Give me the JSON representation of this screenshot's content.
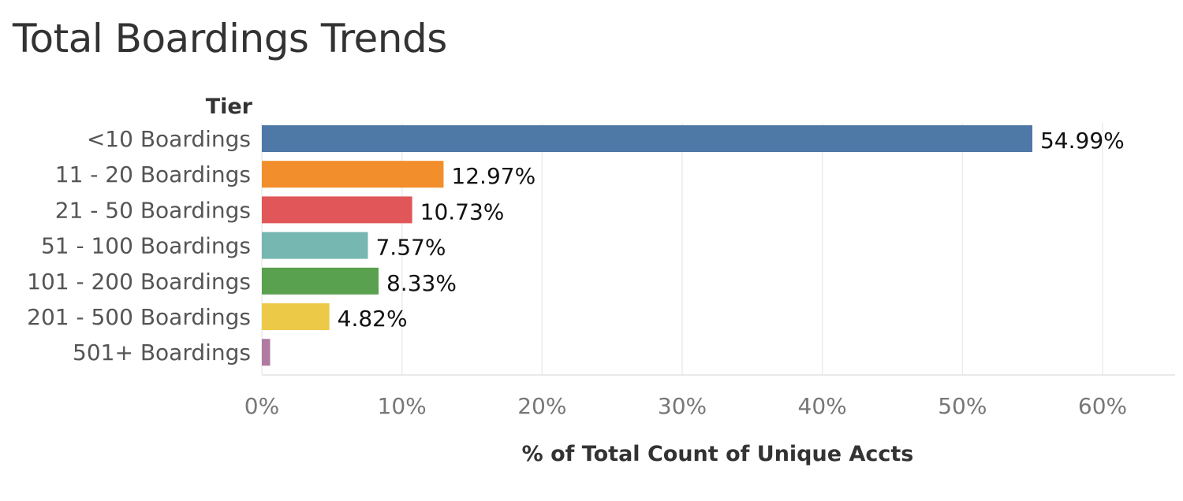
{
  "chart_data": {
    "type": "bar",
    "orientation": "horizontal",
    "title": "Total Boardings Trends",
    "ylabel": "Tier",
    "xlabel": "% of Total Count of Unique Accts",
    "categories": [
      "<10 Boardings",
      "11 - 20 Boardings",
      "21 - 50 Boardings",
      "51 - 100 Boardings",
      "101 - 200 Boardings",
      "201 - 500 Boardings",
      "501+ Boardings"
    ],
    "values": [
      54.99,
      12.97,
      10.73,
      7.57,
      8.33,
      4.82,
      0.59
    ],
    "data_labels": [
      "54.99%",
      "12.97%",
      "10.73%",
      "7.57%",
      "8.33%",
      "4.82%",
      ""
    ],
    "colors": [
      "#4e79a7",
      "#f28e2b",
      "#e15759",
      "#76b7b2",
      "#59a14f",
      "#edc948",
      "#b07aa1"
    ],
    "xlim": [
      0,
      65
    ],
    "xticks": [
      0,
      10,
      20,
      30,
      40,
      50,
      60
    ],
    "xtick_labels": [
      "0%",
      "10%",
      "20%",
      "30%",
      "40%",
      "50%",
      "60%"
    ],
    "grid": true,
    "legend": "none"
  }
}
